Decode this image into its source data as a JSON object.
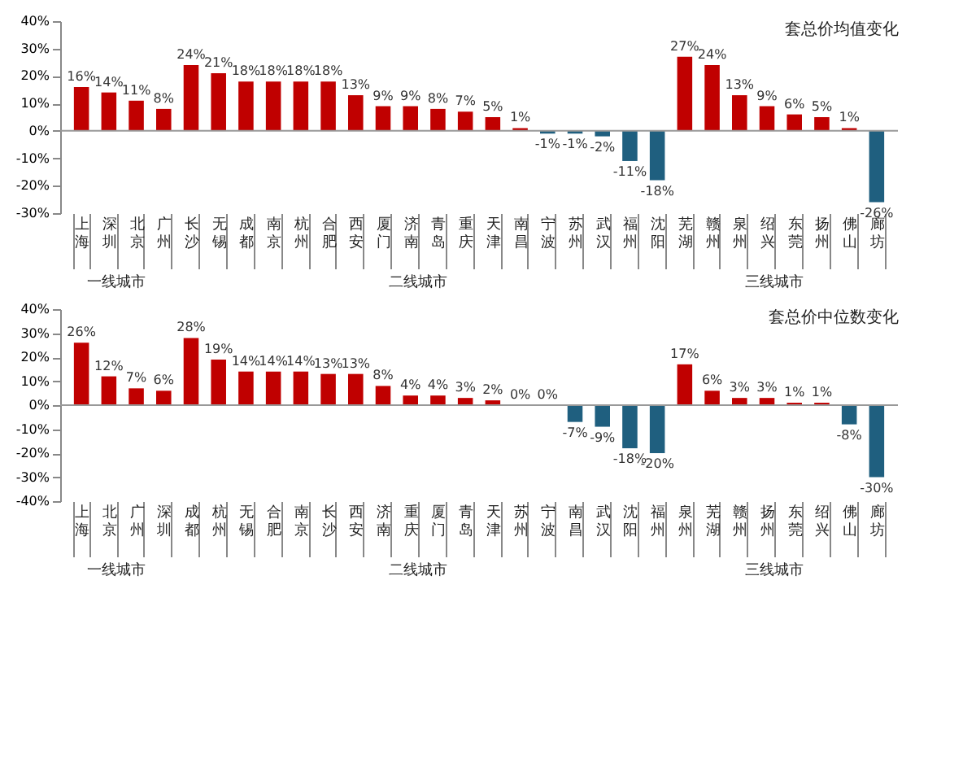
{
  "chart_data": [
    {
      "type": "bar",
      "title": "套总价均值变化",
      "categories": [
        "上海",
        "深圳",
        "北京",
        "广州",
        "长沙",
        "无锡",
        "成都",
        "南京",
        "杭州",
        "合肥",
        "西安",
        "厦门",
        "济南",
        "青岛",
        "重庆",
        "天津",
        "南昌",
        "宁波",
        "苏州",
        "武汉",
        "福州",
        "沈阳",
        "芜湖",
        "赣州",
        "泉州",
        "绍兴",
        "东莞",
        "扬州",
        "佛山",
        "廊坊"
      ],
      "values": [
        16,
        14,
        11,
        8,
        24,
        21,
        18,
        18,
        18,
        18,
        13,
        9,
        9,
        8,
        7,
        5,
        1,
        -1,
        -1,
        -2,
        -11,
        -18,
        27,
        24,
        13,
        9,
        6,
        5,
        1,
        -26
      ],
      "value_labels": [
        "16%",
        "14%",
        "11%",
        "8%",
        "24%",
        "21%",
        "18%",
        "18%",
        "18%",
        "18%",
        "13%",
        "9%",
        "9%",
        "8%",
        "7%",
        "5%",
        "1%",
        "-1%",
        "-1%",
        "-2%",
        "-11%",
        "-18%",
        "27%",
        "24%",
        "13%",
        "9%",
        "6%",
        "5%",
        "1%",
        "-26%"
      ],
      "colors": [
        "#c00000",
        "#c00000",
        "#c00000",
        "#c00000",
        "#c00000",
        "#c00000",
        "#c00000",
        "#c00000",
        "#c00000",
        "#c00000",
        "#c00000",
        "#c00000",
        "#c00000",
        "#c00000",
        "#c00000",
        "#c00000",
        "#c00000",
        "#1f5f7f",
        "#1f5f7f",
        "#1f5f7f",
        "#1f5f7f",
        "#1f5f7f",
        "#c00000",
        "#c00000",
        "#c00000",
        "#c00000",
        "#c00000",
        "#c00000",
        "#c00000",
        "#1f5f7f"
      ],
      "ylim": [
        -30,
        40
      ],
      "yticks": [
        {
          "value": -30,
          "label": "-30%"
        },
        {
          "value": -20,
          "label": "-20%"
        },
        {
          "value": -10,
          "label": "-10%"
        },
        {
          "value": 0,
          "label": "0%"
        },
        {
          "value": 10,
          "label": "10%"
        },
        {
          "value": 20,
          "label": "20%"
        },
        {
          "value": 30,
          "label": "30%"
        },
        {
          "value": 40,
          "label": "40%"
        }
      ],
      "annotations": [
        "一线城市",
        "二线城市",
        "三线城市"
      ],
      "ref_lines": [
        {
          "axis": "y",
          "value": 0
        }
      ],
      "grid": false
    },
    {
      "type": "bar",
      "title": "套总价中位数变化",
      "categories": [
        "上海",
        "北京",
        "广州",
        "深圳",
        "成都",
        "杭州",
        "无锡",
        "合肥",
        "南京",
        "长沙",
        "西安",
        "济南",
        "重庆",
        "厦门",
        "青岛",
        "天津",
        "苏州",
        "宁波",
        "南昌",
        "武汉",
        "沈阳",
        "福州",
        "泉州",
        "芜湖",
        "赣州",
        "扬州",
        "东莞",
        "绍兴",
        "佛山",
        "廊坊"
      ],
      "values": [
        26,
        12,
        7,
        6,
        28,
        19,
        14,
        14,
        14,
        13,
        13,
        8,
        4,
        4,
        3,
        2,
        0,
        0,
        -7,
        -9,
        -18,
        -20,
        17,
        6,
        3,
        3,
        1,
        1,
        -8,
        -30
      ],
      "value_labels": [
        "26%",
        "12%",
        "7%",
        "6%",
        "28%",
        "19%",
        "14%",
        "14%",
        "14%",
        "13%",
        "13%",
        "8%",
        "4%",
        "4%",
        "3%",
        "2%",
        "0%",
        "0%",
        "-7%",
        "-9%",
        "-18%",
        "-20%",
        "17%",
        "6%",
        "3%",
        "3%",
        "1%",
        "1%",
        "-8%",
        "-30%"
      ],
      "colors": [
        "#c00000",
        "#c00000",
        "#c00000",
        "#c00000",
        "#c00000",
        "#c00000",
        "#c00000",
        "#c00000",
        "#c00000",
        "#c00000",
        "#c00000",
        "#c00000",
        "#c00000",
        "#c00000",
        "#c00000",
        "#c00000",
        "#c00000",
        "#1f5f7f",
        "#1f5f7f",
        "#1f5f7f",
        "#1f5f7f",
        "#1f5f7f",
        "#c00000",
        "#c00000",
        "#c00000",
        "#c00000",
        "#c00000",
        "#c00000",
        "#1f5f7f",
        "#1f5f7f"
      ],
      "ylim": [
        -40,
        40
      ],
      "yticks": [
        {
          "value": -40,
          "label": "-40%"
        },
        {
          "value": -30,
          "label": "-30%"
        },
        {
          "value": -20,
          "label": "-20%"
        },
        {
          "value": -10,
          "label": "-10%"
        },
        {
          "value": 0,
          "label": "0%"
        },
        {
          "value": 10,
          "label": "10%"
        },
        {
          "value": 20,
          "label": "20%"
        },
        {
          "value": 30,
          "label": "30%"
        },
        {
          "value": 40,
          "label": "40%"
        }
      ],
      "annotations": [
        "一线城市",
        "二线城市",
        "三线城市"
      ],
      "ref_lines": [
        {
          "axis": "y",
          "value": 0
        }
      ],
      "grid": false
    }
  ]
}
